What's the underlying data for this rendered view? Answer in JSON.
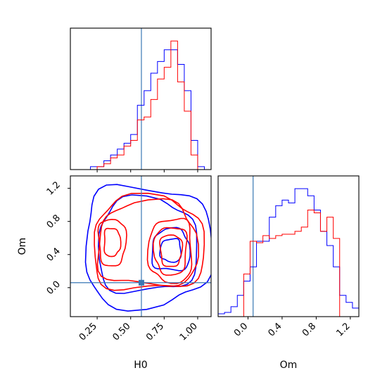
{
  "chart_data": [
    {
      "type": "histogram",
      "panel": "H0 marginal",
      "x_range": [
        0.05,
        1.1
      ],
      "bin_edges": [
        0.05,
        0.1,
        0.15,
        0.2,
        0.25,
        0.3,
        0.35,
        0.4,
        0.45,
        0.5,
        0.55,
        0.6,
        0.65,
        0.7,
        0.75,
        0.8,
        0.85,
        0.9,
        0.95,
        1.0,
        1.05,
        1.1
      ],
      "series": [
        {
          "color": "#0000ff",
          "counts": [
            0,
            0,
            0,
            1,
            1,
            3,
            5,
            7,
            9,
            12,
            22,
            27,
            33,
            37,
            41,
            41,
            36,
            27,
            10,
            1,
            0
          ]
        },
        {
          "color": "#ff0000",
          "counts": [
            0,
            0,
            0,
            0,
            1,
            2,
            4,
            5,
            8,
            10,
            17,
            18,
            24,
            31,
            35,
            44,
            30,
            20,
            5,
            0,
            0
          ]
        }
      ],
      "truth": 0.58
    },
    {
      "type": "contour",
      "panel": "H0 vs Om",
      "x_range": [
        0.05,
        1.1
      ],
      "y_range": [
        -0.35,
        1.35
      ],
      "xlabel": "H0",
      "ylabel": "Om",
      "xticks": [
        "0.25",
        "0.50",
        "0.75",
        "1.00"
      ],
      "yticks": [
        "0.0",
        "0.4",
        "0.8",
        "1.2"
      ],
      "truth": {
        "x": 0.58,
        "y": 0.06
      },
      "series": [
        {
          "color": "#0000ff",
          "blobs": [
            {
              "cx": 0.62,
              "cy": 0.5,
              "rx": 0.47,
              "ry": 0.72,
              "levels": [
                1,
                0.78
              ]
            },
            {
              "cx": 0.8,
              "cy": 0.45,
              "rx": 0.14,
              "ry": 0.25,
              "levels": [
                1,
                0.55
              ]
            }
          ]
        },
        {
          "color": "#ff0000",
          "blobs": [
            {
              "cx": 0.63,
              "cy": 0.52,
              "rx": 0.41,
              "ry": 0.56,
              "levels": [
                1,
                0.9
              ]
            },
            {
              "cx": 0.8,
              "cy": 0.45,
              "rx": 0.16,
              "ry": 0.38,
              "levels": [
                1,
                0.75,
                0.5
              ]
            },
            {
              "cx": 0.36,
              "cy": 0.55,
              "rx": 0.1,
              "ry": 0.28,
              "levels": [
                1,
                0.6
              ]
            }
          ]
        }
      ]
    },
    {
      "type": "histogram",
      "panel": "Om marginal",
      "x_range": [
        -0.35,
        1.3
      ],
      "xlabel": "Om",
      "xticks": [
        "0.0",
        "0.4",
        "0.8",
        "1.2"
      ],
      "bin_edges": [
        -0.35,
        -0.275,
        -0.2,
        -0.125,
        -0.05,
        0.025,
        0.1,
        0.175,
        0.25,
        0.325,
        0.4,
        0.475,
        0.55,
        0.625,
        0.7,
        0.775,
        0.85,
        0.925,
        1.0,
        1.075,
        1.15,
        1.225,
        1.3
      ],
      "series": [
        {
          "color": "#0000ff",
          "counts": [
            2,
            3,
            7,
            15,
            25,
            35,
            53,
            53,
            70,
            78,
            82,
            80,
            90,
            90,
            85,
            75,
            60,
            50,
            35,
            15,
            10,
            6
          ]
        },
        {
          "color": "#ff0000",
          "counts": [
            0,
            0,
            0,
            0,
            30,
            53,
            52,
            57,
            55,
            57,
            58,
            58,
            60,
            63,
            75,
            73,
            60,
            70,
            55,
            0,
            0,
            0
          ]
        }
      ],
      "truth": 0.06
    }
  ]
}
